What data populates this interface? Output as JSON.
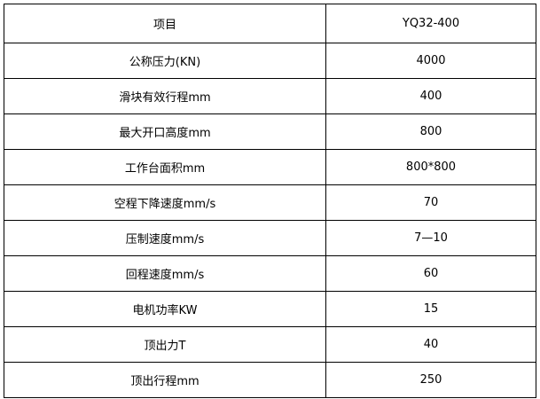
{
  "table": {
    "header": [
      "项目",
      "YQ32-400"
    ],
    "rows": [
      [
        "公称压力(KN)",
        "4000"
      ],
      [
        "滑块有效行程mm",
        "400"
      ],
      [
        "最大开口高度mm",
        "800"
      ],
      [
        "工作台面积mm",
        "800*800"
      ],
      [
        "空程下降速度mm/s",
        "70"
      ],
      [
        "压制速度mm/s",
        "7—10"
      ],
      [
        "回程速度mm/s",
        "60"
      ],
      [
        "电机功率KW",
        "15"
      ],
      [
        "顶出力T",
        "40"
      ],
      [
        "顶出行程mm",
        "250"
      ]
    ]
  }
}
